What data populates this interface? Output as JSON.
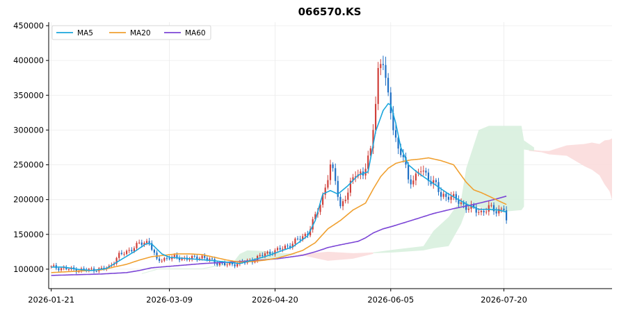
{
  "chart_data": {
    "type": "candlestick",
    "title": "066570.KS",
    "x_tick_labels": [
      "2026-01-21",
      "2026-03-09",
      "2026-04-20",
      "2026-06-05",
      "2026-07-20"
    ],
    "x_tick_index": [
      0,
      47,
      89,
      135,
      180
    ],
    "y_ticks": [
      100000,
      150000,
      200000,
      250000,
      300000,
      350000,
      400000,
      450000
    ],
    "y_tick_labels": [
      "100000",
      "150000",
      "200000",
      "250000",
      "300000",
      "350000",
      "400000",
      "450000"
    ],
    "ylim": [
      72000,
      455000
    ],
    "xlim_index": [
      -1,
      223
    ],
    "grid": true,
    "legend": {
      "placement": "top-left",
      "entries": [
        "MA5",
        "MA20",
        "MA60"
      ]
    },
    "colors": {
      "up": "#d0403a",
      "down": "#1f6fc4",
      "ma5": "#1aa6dc",
      "ma20": "#f0a030",
      "ma60": "#7b45d6",
      "cloud_bull": "#d8f0de",
      "cloud_bear": "#fbdcdc"
    },
    "series_close_anchors": [
      [
        0,
        103000
      ],
      [
        5,
        101000
      ],
      [
        10,
        99000
      ],
      [
        15,
        99000
      ],
      [
        20,
        100000
      ],
      [
        23,
        103000
      ],
      [
        27,
        120000
      ],
      [
        30,
        125000
      ],
      [
        35,
        136000
      ],
      [
        39,
        140000
      ],
      [
        42,
        112000
      ],
      [
        47,
        117000
      ],
      [
        55,
        115000
      ],
      [
        60,
        118000
      ],
      [
        65,
        110000
      ],
      [
        70,
        106000
      ],
      [
        77,
        110000
      ],
      [
        80,
        113000
      ],
      [
        85,
        122000
      ],
      [
        90,
        127000
      ],
      [
        96,
        137000
      ],
      [
        102,
        152000
      ],
      [
        105,
        175000
      ],
      [
        108,
        205000
      ],
      [
        111,
        247000
      ],
      [
        113,
        228000
      ],
      [
        115,
        190000
      ],
      [
        118,
        210000
      ],
      [
        121,
        240000
      ],
      [
        124,
        236000
      ],
      [
        127,
        268000
      ],
      [
        130,
        385000
      ],
      [
        132,
        398000
      ],
      [
        134,
        345000
      ],
      [
        136,
        310000
      ],
      [
        138,
        268000
      ],
      [
        140,
        262000
      ],
      [
        142,
        228000
      ],
      [
        145,
        232000
      ],
      [
        147,
        243000
      ],
      [
        150,
        232000
      ],
      [
        153,
        220000
      ],
      [
        155,
        205000
      ],
      [
        158,
        206000
      ],
      [
        162,
        197000
      ],
      [
        165,
        190000
      ],
      [
        168,
        186000
      ],
      [
        171,
        182000
      ],
      [
        174,
        188000
      ],
      [
        177,
        184000
      ],
      [
        180,
        188000
      ],
      [
        181,
        169000
      ]
    ],
    "ma5_anchors": [
      [
        0,
        103000
      ],
      [
        5,
        103000
      ],
      [
        10,
        100000
      ],
      [
        16,
        98000
      ],
      [
        22,
        101000
      ],
      [
        27,
        112000
      ],
      [
        33,
        125000
      ],
      [
        38,
        137000
      ],
      [
        40,
        136000
      ],
      [
        44,
        122000
      ],
      [
        47,
        117000
      ],
      [
        55,
        115000
      ],
      [
        65,
        112000
      ],
      [
        75,
        108000
      ],
      [
        85,
        118000
      ],
      [
        96,
        132000
      ],
      [
        102,
        148000
      ],
      [
        105,
        170000
      ],
      [
        108,
        208000
      ],
      [
        111,
        213000
      ],
      [
        114,
        208000
      ],
      [
        118,
        220000
      ],
      [
        122,
        235000
      ],
      [
        126,
        240000
      ],
      [
        129,
        298000
      ],
      [
        132,
        328000
      ],
      [
        134,
        338000
      ],
      [
        135,
        336000
      ],
      [
        137,
        310000
      ],
      [
        139,
        275000
      ],
      [
        142,
        250000
      ],
      [
        146,
        238000
      ],
      [
        150,
        228000
      ],
      [
        154,
        218000
      ],
      [
        158,
        208000
      ],
      [
        162,
        200000
      ],
      [
        166,
        192000
      ],
      [
        170,
        186000
      ],
      [
        174,
        186000
      ],
      [
        178,
        185000
      ],
      [
        181,
        182000
      ]
    ],
    "ma20_anchors": [
      [
        0,
        95000
      ],
      [
        10,
        97000
      ],
      [
        20,
        99000
      ],
      [
        25,
        103000
      ],
      [
        30,
        107000
      ],
      [
        35,
        113000
      ],
      [
        40,
        118000
      ],
      [
        45,
        120000
      ],
      [
        50,
        122000
      ],
      [
        55,
        122000
      ],
      [
        60,
        121000
      ],
      [
        65,
        117000
      ],
      [
        70,
        113000
      ],
      [
        75,
        110000
      ],
      [
        80,
        111000
      ],
      [
        85,
        113000
      ],
      [
        90,
        116000
      ],
      [
        95,
        121000
      ],
      [
        100,
        127000
      ],
      [
        105,
        138000
      ],
      [
        110,
        158000
      ],
      [
        115,
        170000
      ],
      [
        120,
        185000
      ],
      [
        125,
        195000
      ],
      [
        128,
        215000
      ],
      [
        131,
        233000
      ],
      [
        134,
        245000
      ],
      [
        137,
        252000
      ],
      [
        140,
        255000
      ],
      [
        143,
        257000
      ],
      [
        146,
        258000
      ],
      [
        150,
        260000
      ],
      [
        155,
        256000
      ],
      [
        160,
        250000
      ],
      [
        162,
        240000
      ],
      [
        165,
        225000
      ],
      [
        168,
        214000
      ],
      [
        171,
        210000
      ],
      [
        174,
        205000
      ],
      [
        178,
        198000
      ],
      [
        181,
        193000
      ]
    ],
    "ma60_anchors": [
      [
        0,
        91000
      ],
      [
        10,
        92000
      ],
      [
        20,
        93000
      ],
      [
        30,
        95000
      ],
      [
        35,
        98000
      ],
      [
        40,
        102000
      ],
      [
        50,
        105000
      ],
      [
        60,
        108000
      ],
      [
        70,
        110000
      ],
      [
        80,
        112000
      ],
      [
        90,
        115000
      ],
      [
        100,
        120000
      ],
      [
        105,
        125000
      ],
      [
        110,
        131000
      ],
      [
        115,
        135000
      ],
      [
        122,
        140000
      ],
      [
        125,
        145000
      ],
      [
        128,
        152000
      ],
      [
        132,
        158000
      ],
      [
        136,
        162000
      ],
      [
        145,
        172000
      ],
      [
        152,
        180000
      ],
      [
        160,
        187000
      ],
      [
        168,
        193000
      ],
      [
        176,
        200000
      ],
      [
        181,
        205000
      ]
    ],
    "cloud_bands": [
      {
        "kind": "bull",
        "points": [
          [
            36,
            93000,
            94000
          ],
          [
            43,
            100000,
            101000
          ],
          [
            60,
            100000,
            101000
          ],
          [
            72,
            108000,
            110000
          ],
          [
            75,
            122000,
            110000
          ],
          [
            78,
            127000,
            112000
          ],
          [
            85,
            126000,
            113000
          ],
          [
            92,
            123000,
            118000
          ],
          [
            97,
            122000,
            121000
          ]
        ]
      },
      {
        "kind": "bear",
        "points": [
          [
            97,
            121000,
            122000
          ],
          [
            110,
            125000,
            112000
          ],
          [
            120,
            123000,
            115000
          ],
          [
            128,
            124000,
            122000
          ]
        ]
      },
      {
        "kind": "bull",
        "points": [
          [
            128,
            124000,
            123000
          ],
          [
            136,
            128000,
            124000
          ],
          [
            148,
            133000,
            127000
          ],
          [
            152,
            155000,
            130000
          ],
          [
            158,
            175000,
            133000
          ],
          [
            163,
            200000,
            165000
          ],
          [
            165,
            245000,
            185000
          ],
          [
            170,
            300000,
            190000
          ],
          [
            174,
            306000,
            185000
          ],
          [
            178,
            306000,
            182000
          ],
          [
            187,
            306000,
            185000
          ],
          [
            188,
            285000,
            190000
          ]
        ]
      },
      {
        "kind": "bear",
        "points": [
          [
            190,
            270000,
            272000
          ],
          [
            195,
            268000,
            270000
          ],
          [
            198,
            265000,
            270000
          ],
          [
            205,
            263000,
            278000
          ],
          [
            212,
            248000,
            280000
          ],
          [
            215,
            243000,
            282000
          ],
          [
            218,
            235000,
            280000
          ],
          [
            220,
            222000,
            285000
          ],
          [
            222,
            212000,
            286000
          ],
          [
            223,
            200000,
            288000
          ]
        ]
      },
      {
        "kind": "bull",
        "points": [
          [
            188,
            272000,
            285000
          ],
          [
            192,
            270000,
            275000
          ]
        ]
      }
    ]
  }
}
